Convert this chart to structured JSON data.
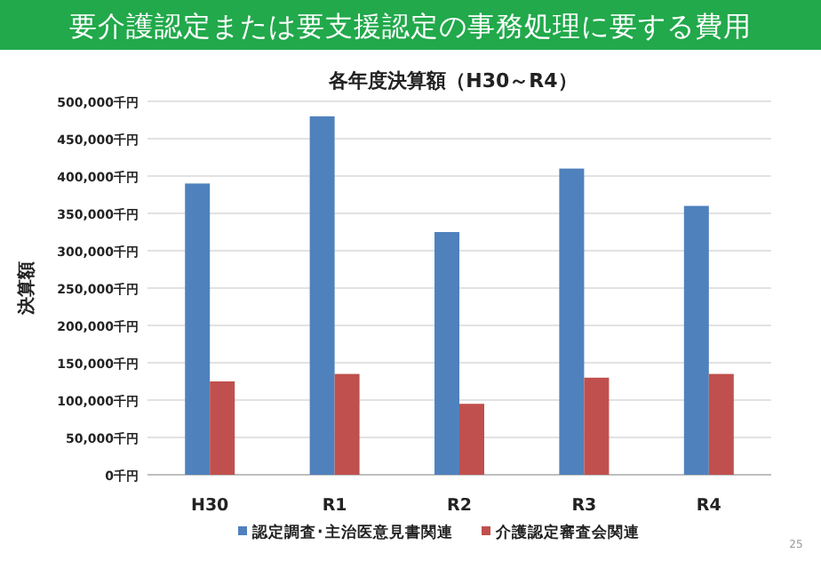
{
  "chart_data": {
    "type": "bar",
    "title": "要介護認定または要支援認定の事務処理に要する費用",
    "subtitle": "各年度決算額（H30～R4）",
    "ylabel": "決算額",
    "categories": [
      "H30",
      "R1",
      "R2",
      "R3",
      "R4"
    ],
    "series": [
      {
        "name": "認定調査･主治医意見書関連",
        "color": "#4f81bd",
        "values": [
          390000,
          480000,
          325000,
          410000,
          360000
        ]
      },
      {
        "name": "介護認定審査会関連",
        "color": "#c0504d",
        "values": [
          125000,
          135000,
          95000,
          130000,
          135000
        ]
      }
    ],
    "ylim": [
      0,
      500000
    ],
    "yticks": [
      {
        "value": 0,
        "label": "0千円"
      },
      {
        "value": 50000,
        "label": "50,000千円"
      },
      {
        "value": 100000,
        "label": "100,000千円"
      },
      {
        "value": 150000,
        "label": "150,000千円"
      },
      {
        "value": 200000,
        "label": "200,000千円"
      },
      {
        "value": 250000,
        "label": "250,000千円"
      },
      {
        "value": 300000,
        "label": "300,000千円"
      },
      {
        "value": 350000,
        "label": "350,000千円"
      },
      {
        "value": 400000,
        "label": "400,000千円"
      },
      {
        "value": 450000,
        "label": "450,000千円"
      },
      {
        "value": 500000,
        "label": "500,000千円"
      }
    ],
    "grid": "y",
    "legend": "bottom",
    "annotations": [
      "25"
    ]
  }
}
